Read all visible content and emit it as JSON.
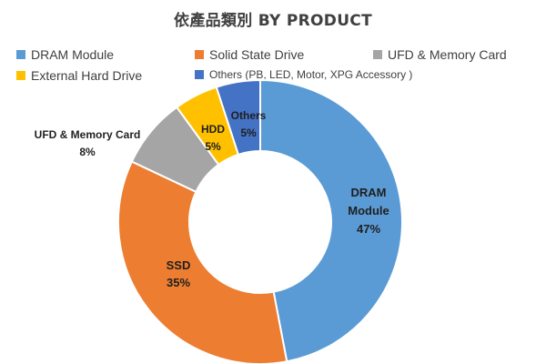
{
  "chart_data": {
    "type": "donut",
    "title": "依產品類別  BY PRODUCT",
    "legend_position": "top",
    "categories": [
      "DRAM Module",
      "Solid State Drive",
      "UFD & Memory Card",
      "External Hard Drive",
      "Others (PB, LED, Motor, XPG Accessory )"
    ],
    "values": [
      47,
      35,
      8,
      5,
      5
    ],
    "unit": "%",
    "colors": [
      "#5b9bd5",
      "#ed7d31",
      "#a5a5a5",
      "#ffc000",
      "#4472c4"
    ],
    "slice_labels": [
      {
        "lines": [
          "DRAM",
          "Module",
          "47%"
        ]
      },
      {
        "lines": [
          "SSD",
          "35%"
        ]
      },
      {
        "lines": [
          "UFD & Memory Card",
          "8%"
        ]
      },
      {
        "lines": [
          "HDD",
          "5%"
        ]
      },
      {
        "lines": [
          "Others",
          "5%"
        ]
      }
    ]
  }
}
